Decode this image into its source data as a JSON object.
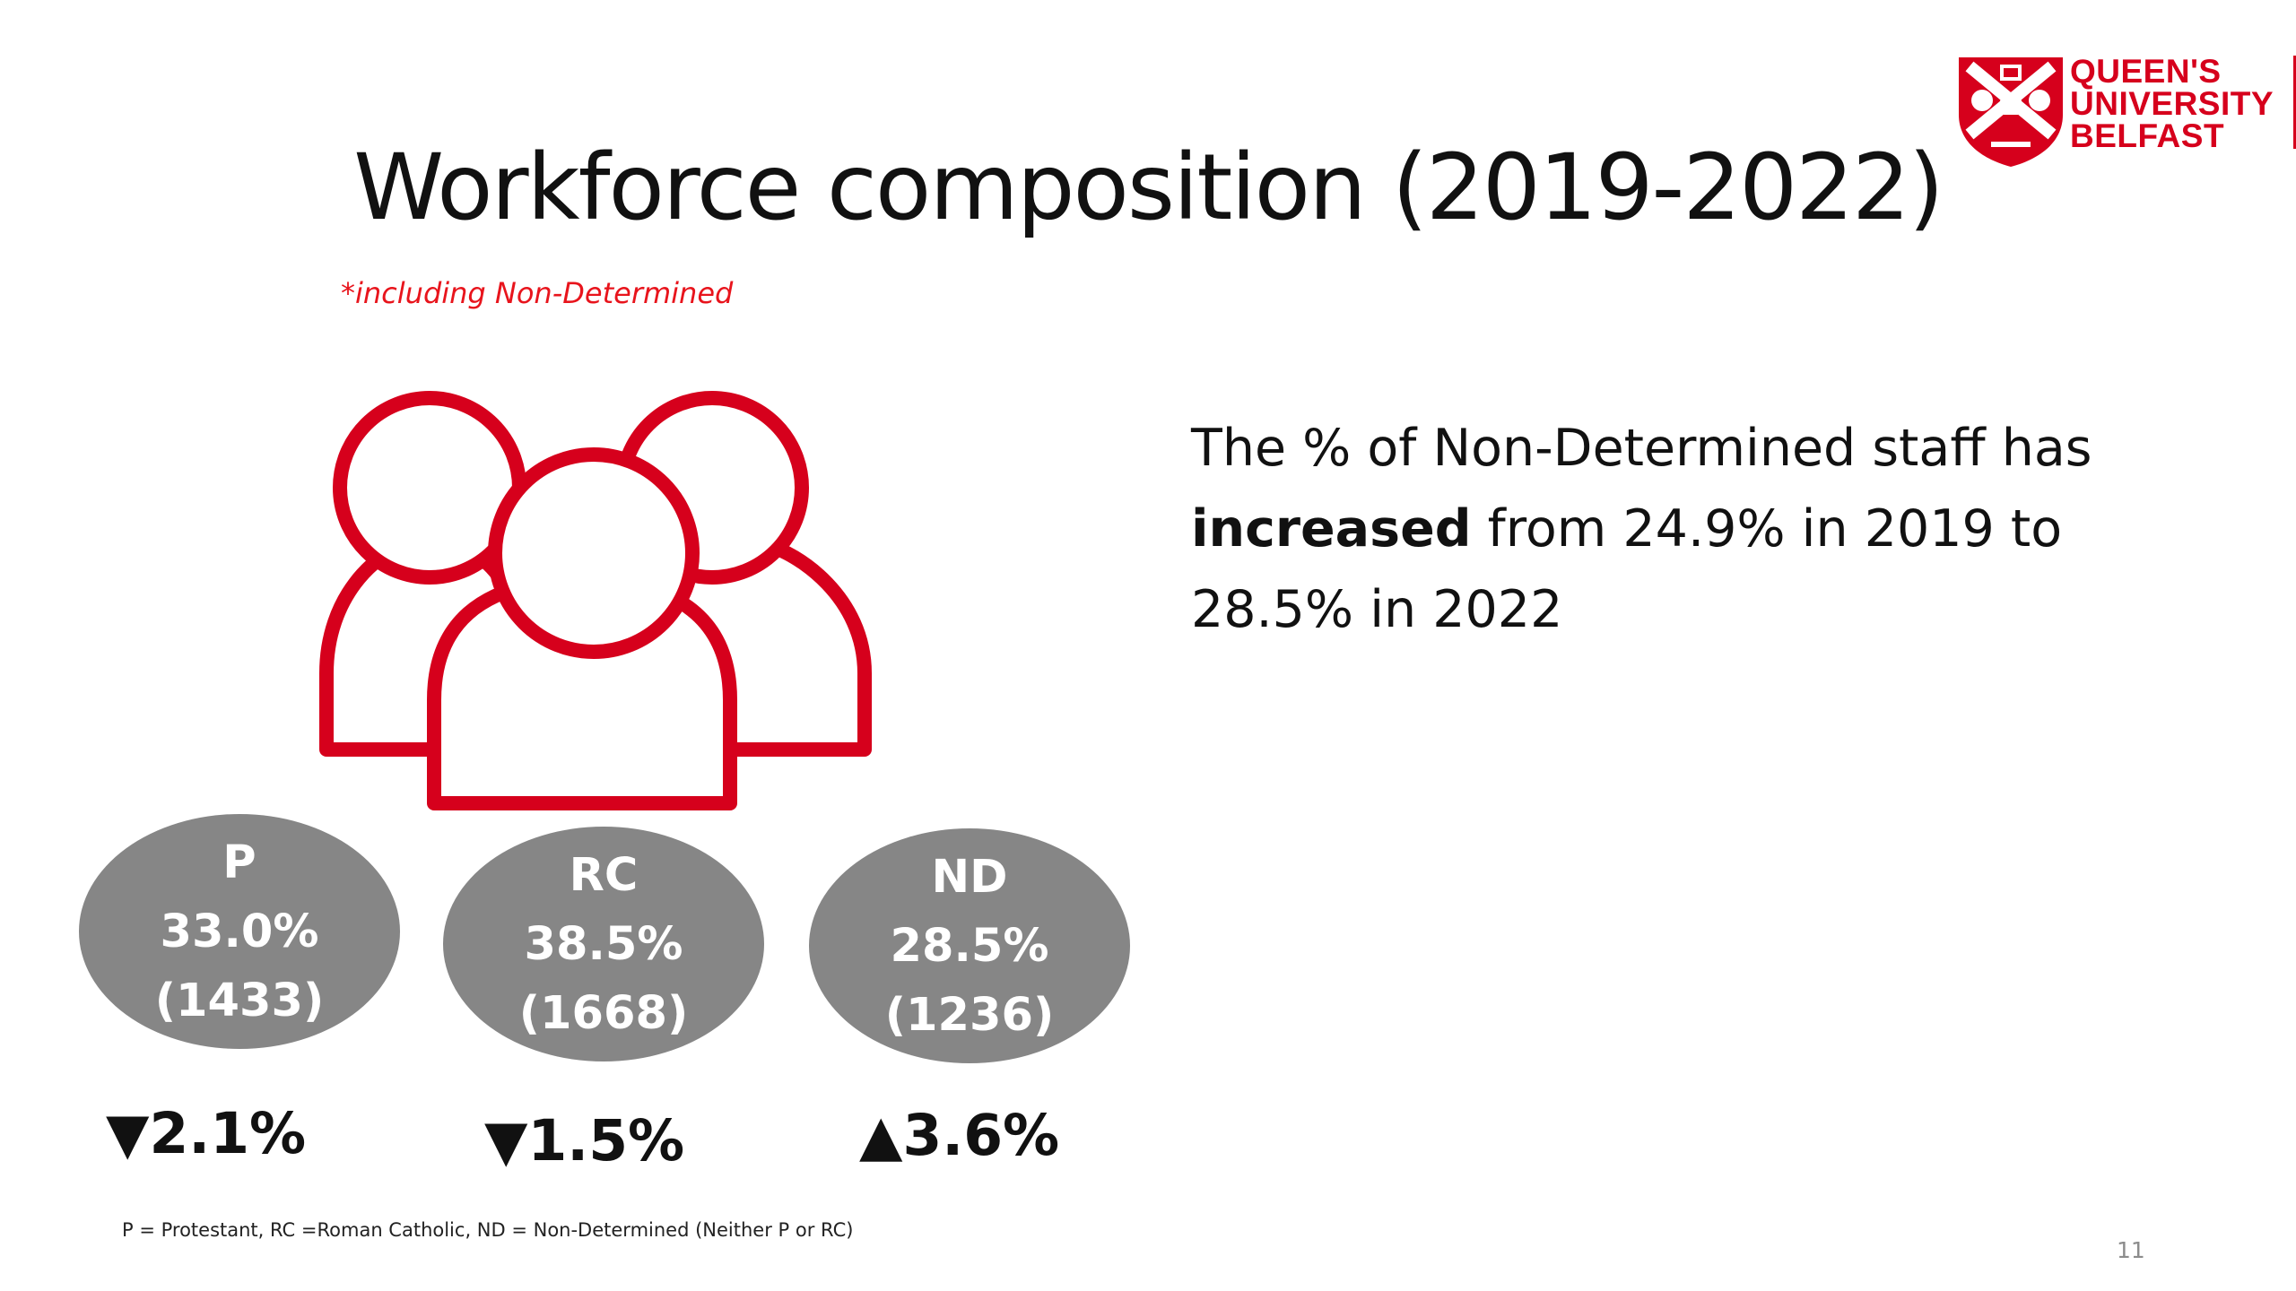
{
  "logo": {
    "line1": "QUEEN'S",
    "line2": "UNIVERSITY",
    "line3": "BELFAST",
    "color": "#d6001c"
  },
  "title": "Workforce composition (2019-2022)",
  "subnote": "*including Non-Determined",
  "icon": "people-group-icon",
  "statement": {
    "part1": "The % of Non-Determined staff has ",
    "bold": "increased",
    "part2": " from 24.9% in 2019 to 28.5% in 2022"
  },
  "groups": [
    {
      "code": "P",
      "percent": "33.0%",
      "count": "(1433)",
      "change": "▼2.1%"
    },
    {
      "code": "RC",
      "percent": "38.5%",
      "count": "(1668)",
      "change": "▼1.5%"
    },
    {
      "code": "ND",
      "percent": "28.5%",
      "count": "(1236)",
      "change": "▲3.6%"
    }
  ],
  "footnote": "P = Protestant, RC =Roman Catholic, ND = Non-Determined (Neither P or RC)",
  "page_number": "11",
  "colors": {
    "accent_red": "#d6001c",
    "ellipse_grey": "#868686"
  }
}
